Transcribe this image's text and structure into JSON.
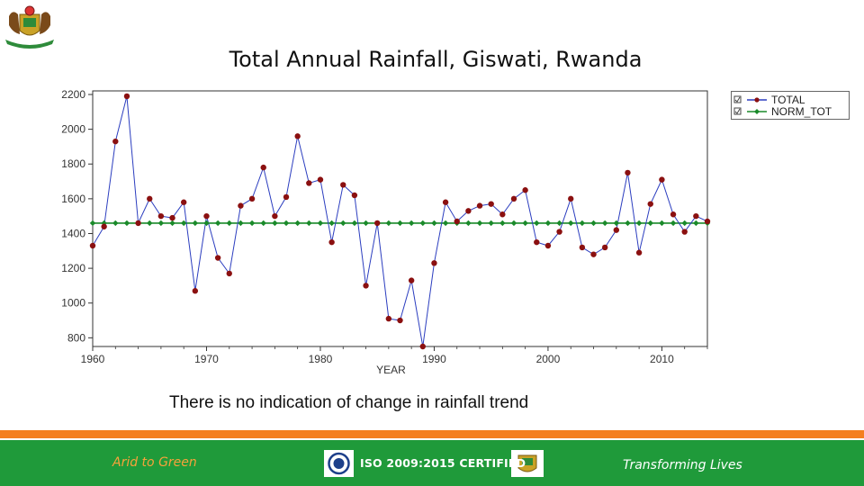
{
  "slide": {
    "title": "Total Annual Rainfall, Giswati, Rwanda",
    "caption": "There is no indication of change in rainfall trend",
    "footer_left": "Arid to Green",
    "footer_center": "ISO 2009:2015 CERTIFIED",
    "footer_right": "Transforming Lives"
  },
  "colors": {
    "total_line": "#2b3dbf",
    "total_marker": "#8b1010",
    "norm_line": "#1a8a2a",
    "orange_band": "#f47f20",
    "green_band": "#1f9a3a"
  },
  "chart_data": {
    "type": "line",
    "title": "Total Annual Rainfall, Giswati, Rwanda",
    "xlabel": "YEAR",
    "ylabel": "",
    "xlim": [
      1960,
      2014
    ],
    "ylim": [
      750,
      2200
    ],
    "xticks": [
      1960,
      1970,
      1980,
      1990,
      2000,
      2010
    ],
    "yticks": [
      800,
      1000,
      1200,
      1400,
      1600,
      1800,
      2000,
      2200
    ],
    "x": [
      1960,
      1961,
      1962,
      1963,
      1964,
      1965,
      1966,
      1967,
      1968,
      1969,
      1970,
      1971,
      1972,
      1973,
      1974,
      1975,
      1976,
      1977,
      1978,
      1979,
      1980,
      1981,
      1982,
      1983,
      1984,
      1985,
      1986,
      1987,
      1988,
      1989,
      1990,
      1991,
      1992,
      1993,
      1994,
      1995,
      1996,
      1997,
      1998,
      1999,
      2000,
      2001,
      2002,
      2003,
      2004,
      2005,
      2006,
      2007,
      2008,
      2009,
      2010,
      2011,
      2012,
      2013,
      2014
    ],
    "series": [
      {
        "name": "TOTAL",
        "values": [
          1330,
          1440,
          1930,
          2190,
          1460,
          1600,
          1500,
          1490,
          1580,
          1070,
          1500,
          1260,
          1170,
          1560,
          1600,
          1780,
          1500,
          1610,
          1960,
          1690,
          1710,
          1350,
          1680,
          1620,
          1100,
          1460,
          910,
          900,
          1130,
          750,
          1230,
          1580,
          1470,
          1530,
          1560,
          1570,
          1510,
          1600,
          1650,
          1350,
          1330,
          1410,
          1600,
          1320,
          1280,
          1320,
          1420,
          1750,
          1290,
          1570,
          1710,
          1510,
          1410,
          1500,
          1470
        ]
      },
      {
        "name": "NORM_TOT",
        "values": [
          1460,
          1460,
          1460,
          1460,
          1460,
          1460,
          1460,
          1460,
          1460,
          1460,
          1460,
          1460,
          1460,
          1460,
          1460,
          1460,
          1460,
          1460,
          1460,
          1460,
          1460,
          1460,
          1460,
          1460,
          1460,
          1460,
          1460,
          1460,
          1460,
          1460,
          1460,
          1460,
          1460,
          1460,
          1460,
          1460,
          1460,
          1460,
          1460,
          1460,
          1460,
          1460,
          1460,
          1460,
          1460,
          1460,
          1460,
          1460,
          1460,
          1460,
          1460,
          1460,
          1460,
          1460,
          1460
        ]
      }
    ],
    "legend": [
      "TOTAL",
      "NORM_TOT"
    ],
    "legend_position": "top-right"
  }
}
